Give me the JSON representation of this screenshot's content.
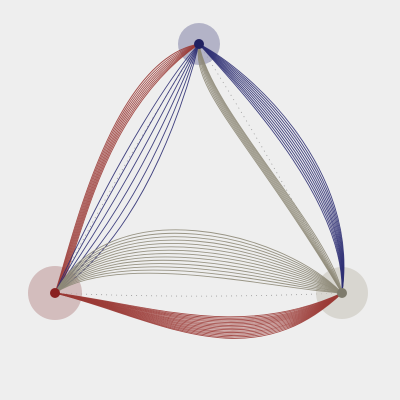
{
  "diagram": {
    "type": "chord-bundle",
    "background": "#eeeeee",
    "nodes": [
      {
        "id": "top",
        "color": "#202060",
        "halo_color": "#9a9ab6"
      },
      {
        "id": "left",
        "color": "#8a2020",
        "halo_color": "#c8a8a8"
      },
      {
        "id": "right",
        "color": "#7e7b6c",
        "halo_color": "#cfccc3"
      }
    ],
    "bundles": [
      {
        "from": "top",
        "to": "left",
        "color": "#9b3b36",
        "lines": 8
      },
      {
        "from": "top",
        "to": "left",
        "color": "#2d2f73",
        "lines": 6
      },
      {
        "from": "top",
        "to": "right",
        "color": "#2d2f73",
        "lines": 10
      },
      {
        "from": "top",
        "to": "right",
        "color": "#8e8a78",
        "lines": 8
      },
      {
        "from": "left",
        "to": "right",
        "color": "#8e8a78",
        "lines": 14
      },
      {
        "from": "left",
        "to": "right",
        "color": "#9b3b36",
        "lines": 16
      }
    ],
    "outline_style": "dotted",
    "outline_color": "#999999"
  }
}
